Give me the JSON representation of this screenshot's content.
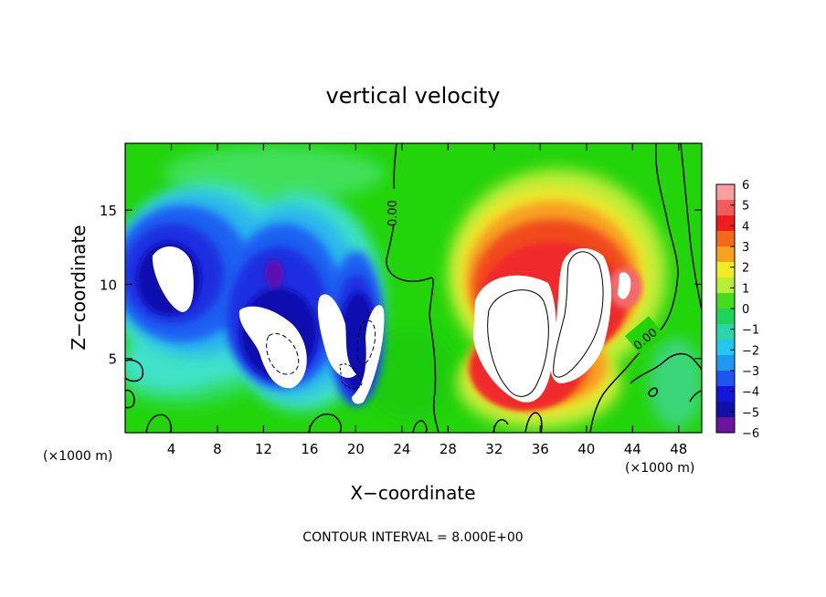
{
  "chart_data": {
    "type": "heatmap",
    "title": "vertical velocity",
    "xlabel": "X−coordinate",
    "ylabel": "Z−coordinate",
    "x_unit_left": "(×1000 m)",
    "x_unit_right": "(×1000 m)",
    "footer": "CONTOUR INTERVAL = 8.000E+00",
    "xlim": [
      0,
      50
    ],
    "ylim": [
      0,
      19.5
    ],
    "x_ticks": [
      4,
      8,
      12,
      16,
      20,
      24,
      28,
      32,
      36,
      40,
      44,
      48
    ],
    "x_tick_labels": [
      "4",
      "8",
      "12",
      "16",
      "20",
      "24",
      "28",
      "32",
      "36",
      "40",
      "44",
      "48"
    ],
    "y_ticks": [
      5,
      10,
      15
    ],
    "y_tick_labels": [
      "5",
      "10",
      "15"
    ],
    "colorbar": {
      "labels": [
        "6",
        "5",
        "4",
        "3",
        "2",
        "1",
        "0",
        "−1",
        "−2",
        "−3",
        "−4",
        "−5",
        "−6"
      ],
      "min": -6,
      "max": 6
    },
    "contour_labels": [
      "0.00",
      "0.00"
    ],
    "grid": false
  },
  "colors": {
    "background_field": "#22d40a",
    "contour_line": "#000000"
  }
}
